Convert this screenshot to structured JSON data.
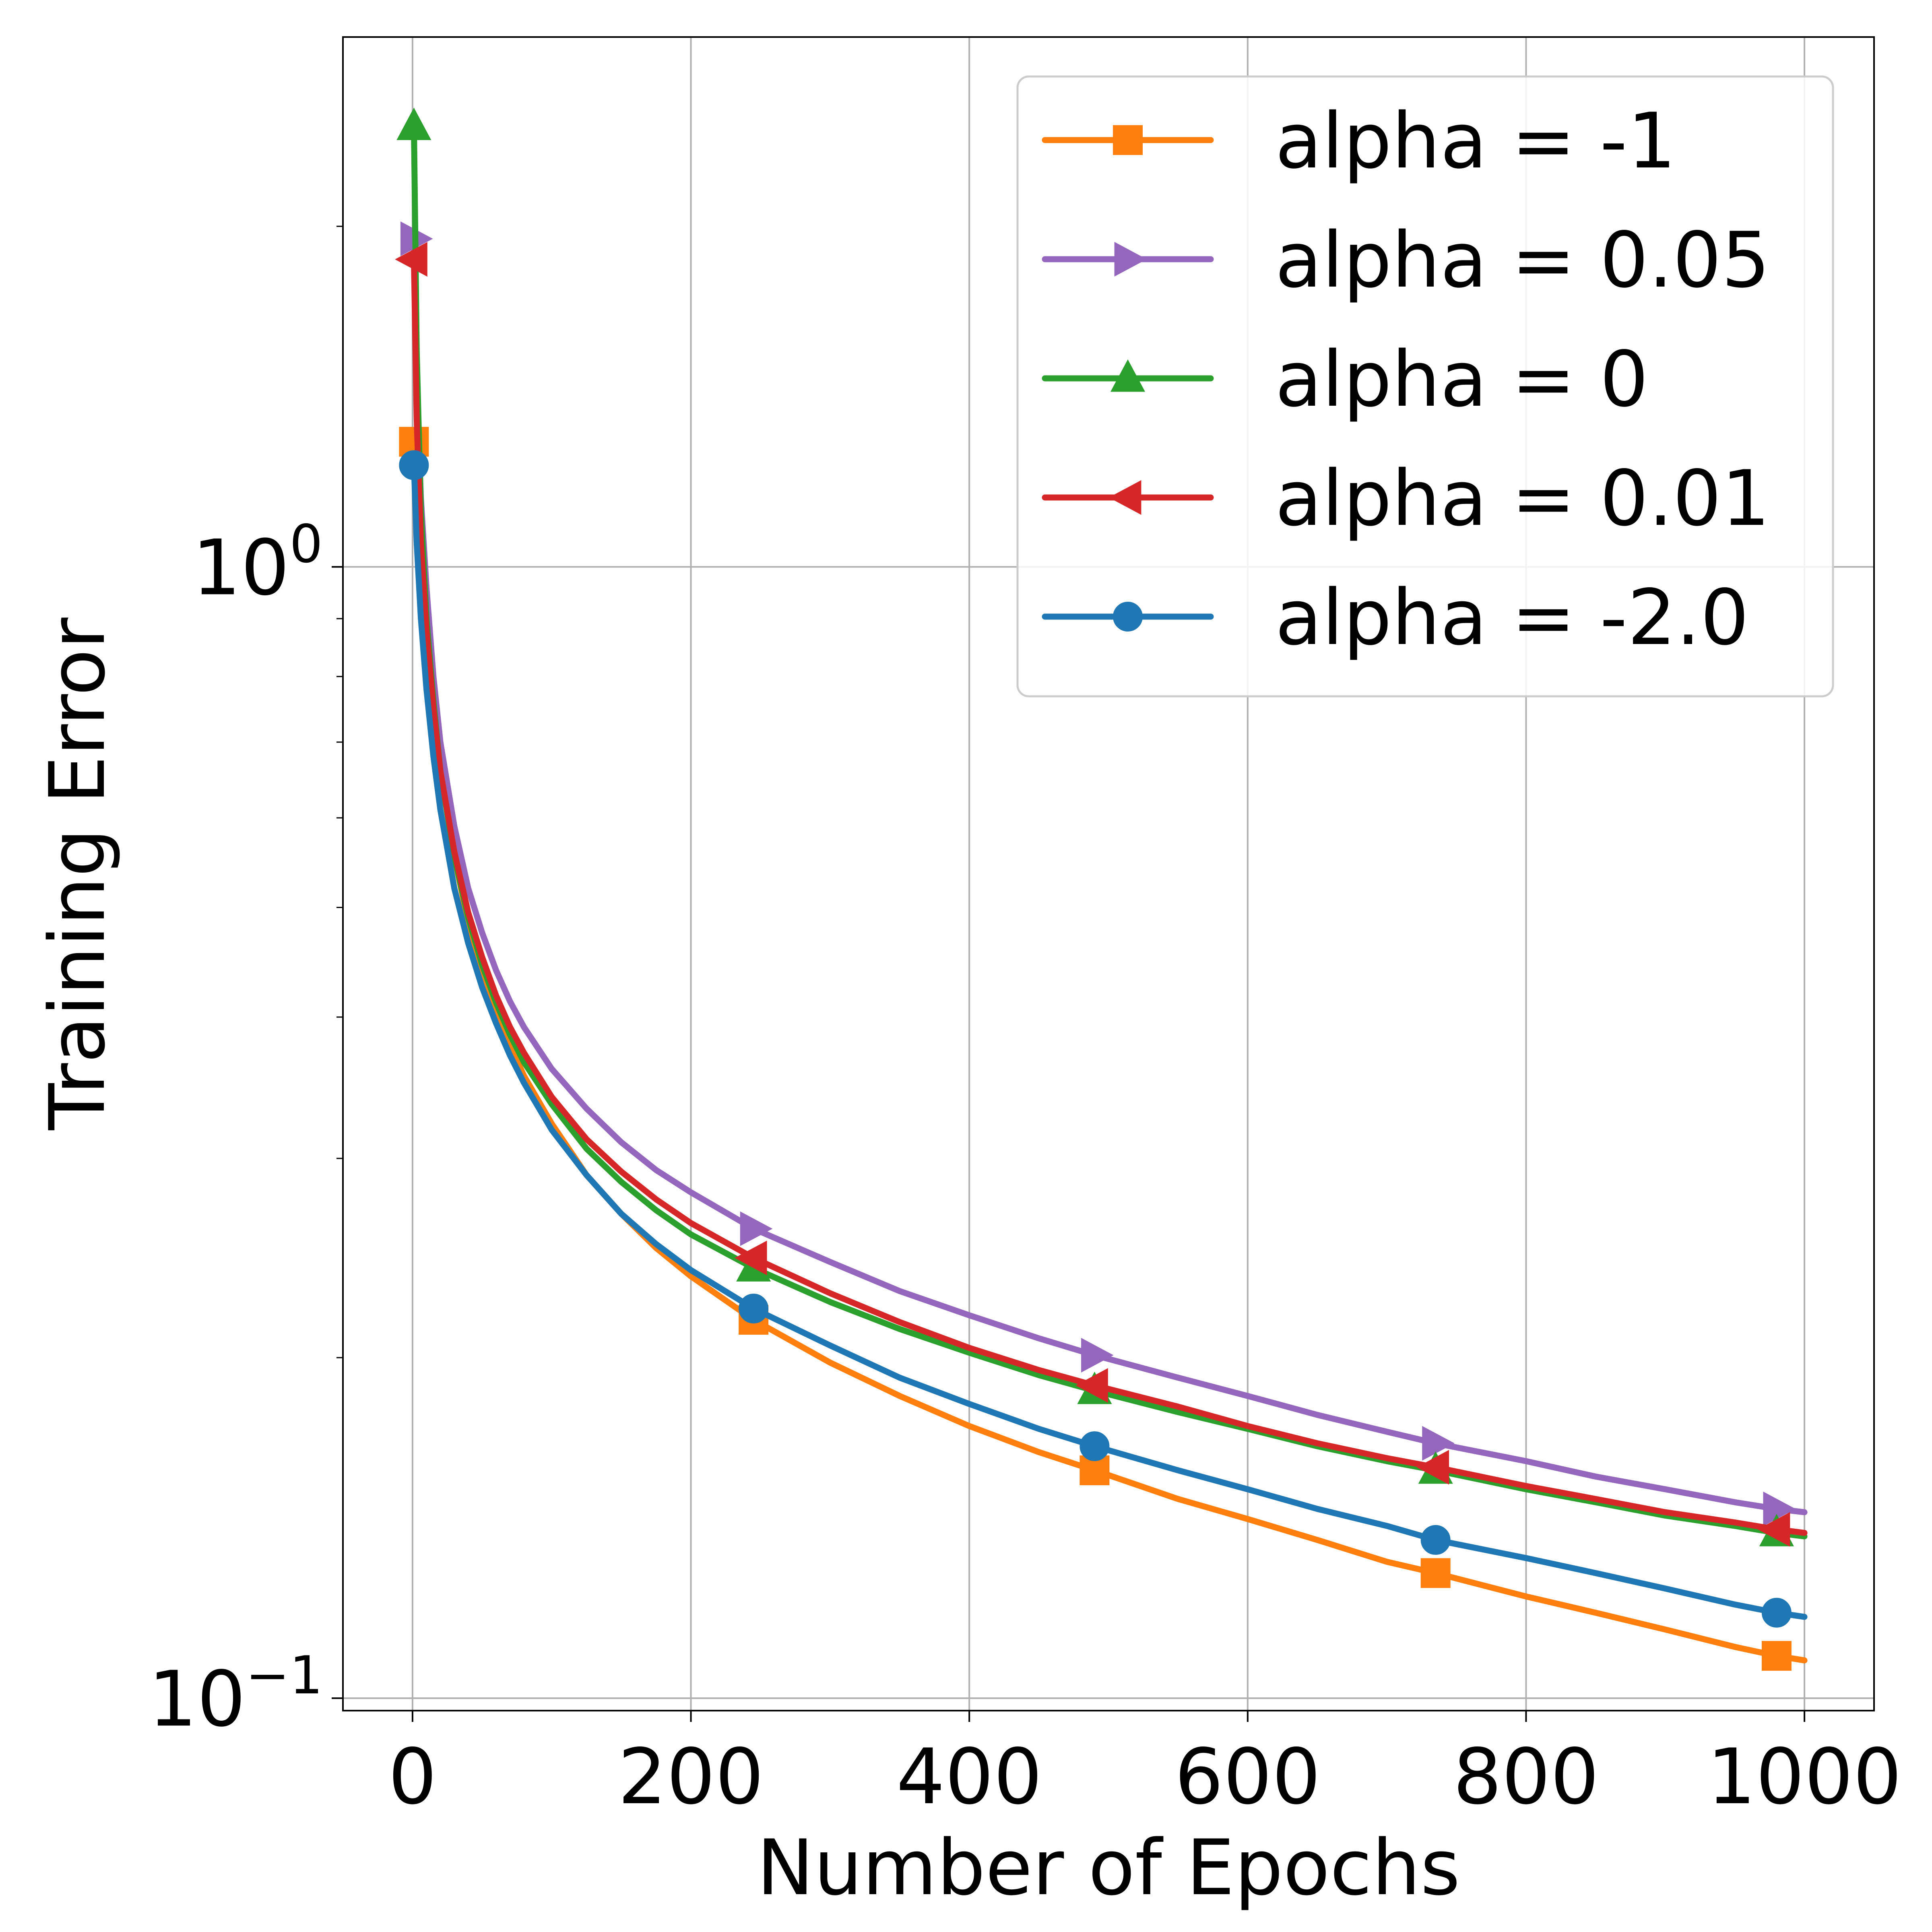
{
  "chart_data": {
    "type": "line",
    "title": "",
    "xlabel": "Number of Epochs",
    "ylabel": "Training Error",
    "xscale": "linear",
    "yscale": "log",
    "xlim": [
      -50,
      1050
    ],
    "ylim": [
      0.0975,
      2.94
    ],
    "xticks": [
      0,
      200,
      400,
      600,
      800,
      1000
    ],
    "xtick_labels": [
      "0",
      "200",
      "400",
      "600",
      "800",
      "1000"
    ],
    "yticks": [
      {
        "value": 1.0,
        "base": "10",
        "exp": "0"
      },
      {
        "value": 0.1,
        "base": "10",
        "exp": "−1"
      }
    ],
    "grid": true,
    "legend_position": "top-right",
    "series": [
      {
        "name": "alpha = -1",
        "color": "#ff7f0e",
        "marker": "square",
        "x": [
          1,
          3,
          6,
          10,
          15,
          20,
          30,
          40,
          50,
          60,
          70,
          80,
          100,
          125,
          150,
          175,
          200,
          245,
          300,
          350,
          400,
          450,
          490,
          550,
          600,
          650,
          700,
          735,
          800,
          850,
          900,
          950,
          980,
          1000
        ],
        "y": [
          1.29,
          1.1,
          0.95,
          0.85,
          0.74,
          0.66,
          0.555,
          0.485,
          0.44,
          0.405,
          0.378,
          0.355,
          0.322,
          0.29,
          0.268,
          0.25,
          0.236,
          0.216,
          0.198,
          0.185,
          0.174,
          0.165,
          0.159,
          0.15,
          0.144,
          0.138,
          0.132,
          0.129,
          0.123,
          0.119,
          0.115,
          0.111,
          0.109,
          0.108
        ],
        "markers_x": [
          1,
          245,
          490,
          735,
          980
        ]
      },
      {
        "name": "alpha = 0.05",
        "color": "#9467bd",
        "marker": "triangle-right",
        "x": [
          1,
          3,
          6,
          10,
          15,
          20,
          30,
          40,
          50,
          60,
          70,
          80,
          100,
          125,
          150,
          175,
          200,
          245,
          300,
          350,
          400,
          450,
          490,
          550,
          600,
          650,
          700,
          735,
          800,
          850,
          900,
          950,
          980,
          1000
        ],
        "y": [
          1.95,
          1.45,
          1.15,
          0.96,
          0.8,
          0.7,
          0.59,
          0.52,
          0.475,
          0.44,
          0.413,
          0.392,
          0.36,
          0.332,
          0.31,
          0.293,
          0.28,
          0.26,
          0.243,
          0.229,
          0.218,
          0.208,
          0.201,
          0.192,
          0.185,
          0.178,
          0.172,
          0.168,
          0.162,
          0.157,
          0.153,
          0.149,
          0.147,
          0.146
        ],
        "markers_x": [
          1,
          245,
          490,
          735,
          980
        ]
      },
      {
        "name": "alpha = 0",
        "color": "#2ca02c",
        "marker": "triangle-up",
        "x": [
          1,
          3,
          6,
          10,
          15,
          20,
          30,
          40,
          50,
          60,
          70,
          80,
          100,
          125,
          150,
          175,
          200,
          245,
          300,
          350,
          400,
          450,
          490,
          550,
          600,
          650,
          700,
          735,
          800,
          850,
          900,
          950,
          980,
          1000
        ],
        "y": [
          2.45,
          1.55,
          1.12,
          0.9,
          0.76,
          0.66,
          0.555,
          0.49,
          0.445,
          0.412,
          0.386,
          0.365,
          0.335,
          0.306,
          0.286,
          0.27,
          0.257,
          0.24,
          0.224,
          0.212,
          0.202,
          0.193,
          0.187,
          0.179,
          0.173,
          0.167,
          0.162,
          0.159,
          0.153,
          0.149,
          0.145,
          0.142,
          0.14,
          0.139
        ],
        "markers_x": [
          1,
          245,
          490,
          735,
          980
        ]
      },
      {
        "name": "alpha = 0.01",
        "color": "#d62728",
        "marker": "triangle-left",
        "x": [
          1,
          3,
          6,
          10,
          15,
          20,
          30,
          40,
          50,
          60,
          70,
          80,
          100,
          125,
          150,
          175,
          200,
          245,
          300,
          350,
          400,
          450,
          490,
          550,
          600,
          650,
          700,
          735,
          800,
          850,
          900,
          950,
          980,
          1000
        ],
        "y": [
          1.87,
          1.35,
          1.05,
          0.88,
          0.75,
          0.66,
          0.56,
          0.495,
          0.452,
          0.418,
          0.392,
          0.372,
          0.34,
          0.312,
          0.292,
          0.276,
          0.263,
          0.245,
          0.228,
          0.215,
          0.204,
          0.195,
          0.189,
          0.181,
          0.174,
          0.168,
          0.163,
          0.16,
          0.154,
          0.15,
          0.146,
          0.143,
          0.141,
          0.14
        ],
        "markers_x": [
          1,
          245,
          490,
          735,
          980
        ]
      },
      {
        "name": "alpha = -2.0",
        "color": "#1f77b4",
        "marker": "circle",
        "x": [
          1,
          3,
          6,
          10,
          15,
          20,
          30,
          40,
          50,
          60,
          70,
          80,
          100,
          125,
          150,
          175,
          200,
          245,
          300,
          350,
          400,
          450,
          490,
          550,
          600,
          650,
          700,
          735,
          800,
          850,
          900,
          950,
          980,
          1000
        ],
        "y": [
          1.23,
          1.05,
          0.9,
          0.78,
          0.68,
          0.61,
          0.52,
          0.465,
          0.425,
          0.395,
          0.37,
          0.35,
          0.318,
          0.29,
          0.268,
          0.252,
          0.239,
          0.221,
          0.205,
          0.192,
          0.182,
          0.173,
          0.167,
          0.159,
          0.153,
          0.147,
          0.142,
          0.138,
          0.133,
          0.129,
          0.125,
          0.121,
          0.119,
          0.118
        ],
        "markers_x": [
          1,
          245,
          490,
          735,
          980
        ]
      }
    ]
  }
}
